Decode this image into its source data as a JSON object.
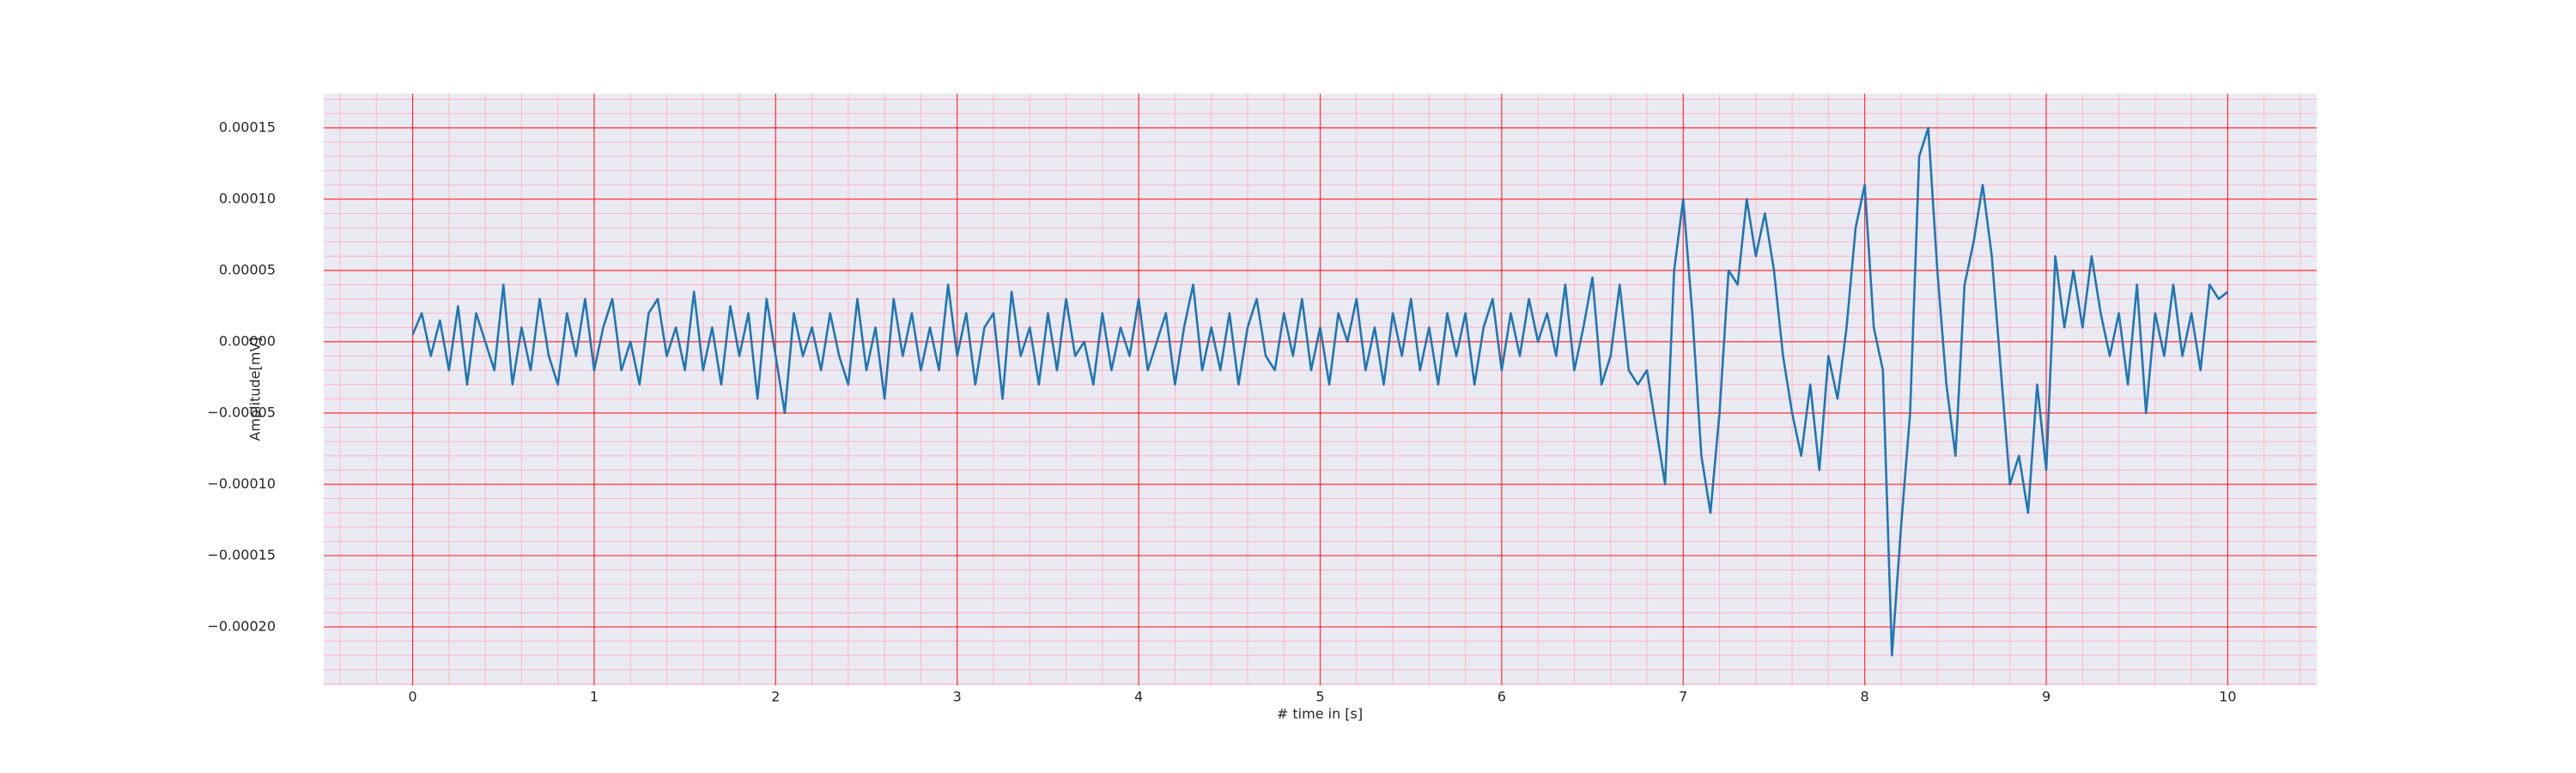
{
  "chart_data": {
    "type": "line",
    "xlabel": "# time in [s]",
    "ylabel": "Amplitude[mV]",
    "color": "#1f77b4",
    "grid": true,
    "grid_color": "#ff0000",
    "minor_grid": true,
    "minor_grid_color": "#ffb6c8",
    "background": "#eaeaf2",
    "xlim": [
      -0.49,
      10.49
    ],
    "ylim": [
      -0.000241,
      0.000174
    ],
    "xticks": [
      0,
      1,
      2,
      3,
      4,
      5,
      6,
      7,
      8,
      9,
      10
    ],
    "yticks": [
      {
        "value": 0.00015,
        "label": "0.00015"
      },
      {
        "value": 0.0001,
        "label": "0.00010"
      },
      {
        "value": 5e-05,
        "label": "0.00005"
      },
      {
        "value": 0,
        "label": "0.00000"
      },
      {
        "value": -5e-05,
        "label": "−0.00005"
      },
      {
        "value": -0.0001,
        "label": "−0.00010"
      },
      {
        "value": -0.00015,
        "label": "−0.00015"
      },
      {
        "value": -0.0002,
        "label": "−0.00020"
      }
    ],
    "x": [
      0,
      0.05,
      0.1,
      0.15,
      0.2,
      0.25,
      0.3,
      0.35,
      0.4,
      0.45,
      0.5,
      0.55,
      0.6,
      0.65,
      0.7,
      0.75,
      0.8,
      0.85,
      0.9,
      0.95,
      1,
      1.05,
      1.1,
      1.15,
      1.2,
      1.25,
      1.3,
      1.35,
      1.4,
      1.45,
      1.5,
      1.55,
      1.6,
      1.65,
      1.7,
      1.75,
      1.8,
      1.85,
      1.9,
      1.95,
      2,
      2.05,
      2.1,
      2.15,
      2.2,
      2.25,
      2.3,
      2.35,
      2.4,
      2.45,
      2.5,
      2.55,
      2.6,
      2.65,
      2.7,
      2.75,
      2.8,
      2.85,
      2.9,
      2.95,
      3,
      3.05,
      3.1,
      3.15,
      3.2,
      3.25,
      3.3,
      3.35,
      3.4,
      3.45,
      3.5,
      3.55,
      3.6,
      3.65,
      3.7,
      3.75,
      3.8,
      3.85,
      3.9,
      3.95,
      4,
      4.05,
      4.1,
      4.15,
      4.2,
      4.25,
      4.3,
      4.35,
      4.4,
      4.45,
      4.5,
      4.55,
      4.6,
      4.65,
      4.7,
      4.75,
      4.8,
      4.85,
      4.9,
      4.95,
      5,
      5.05,
      5.1,
      5.15,
      5.2,
      5.25,
      5.3,
      5.35,
      5.4,
      5.45,
      5.5,
      5.55,
      5.6,
      5.65,
      5.7,
      5.75,
      5.8,
      5.85,
      5.9,
      5.95,
      6,
      6.05,
      6.1,
      6.15,
      6.2,
      6.25,
      6.3,
      6.35,
      6.4,
      6.45,
      6.5,
      6.55,
      6.6,
      6.65,
      6.7,
      6.75,
      6.8,
      6.85,
      6.9,
      6.95,
      7,
      7.05,
      7.1,
      7.15,
      7.2,
      7.25,
      7.3,
      7.35,
      7.4,
      7.45,
      7.5,
      7.55,
      7.6,
      7.65,
      7.7,
      7.75,
      7.8,
      7.85,
      7.9,
      7.95,
      8,
      8.05,
      8.1,
      8.15,
      8.2,
      8.25,
      8.3,
      8.35,
      8.4,
      8.45,
      8.5,
      8.55,
      8.6,
      8.65,
      8.7,
      8.75,
      8.8,
      8.85,
      8.9,
      8.95,
      9,
      9.05,
      9.1,
      9.15,
      9.2,
      9.25,
      9.3,
      9.35,
      9.4,
      9.45,
      9.5,
      9.55,
      9.6,
      9.65,
      9.7,
      9.75,
      9.8,
      9.85,
      9.9,
      9.95,
      10
    ],
    "values": [
      5e-06,
      2e-05,
      -1e-05,
      1.5e-05,
      -2e-05,
      2.5e-05,
      -3e-05,
      2e-05,
      0,
      -2e-05,
      4e-05,
      -3e-05,
      1e-05,
      -2e-05,
      3e-05,
      -1e-05,
      -3e-05,
      2e-05,
      -1e-05,
      3e-05,
      -2e-05,
      1e-05,
      3e-05,
      -2e-05,
      0,
      -3e-05,
      2e-05,
      3e-05,
      -1e-05,
      1e-05,
      -2e-05,
      3.5e-05,
      -2e-05,
      1e-05,
      -3e-05,
      2.5e-05,
      -1e-05,
      2e-05,
      -4e-05,
      3e-05,
      -1e-05,
      -5e-05,
      2e-05,
      -1e-05,
      1e-05,
      -2e-05,
      2e-05,
      -1e-05,
      -3e-05,
      3e-05,
      -2e-05,
      1e-05,
      -4e-05,
      3e-05,
      -1e-05,
      2e-05,
      -2e-05,
      1e-05,
      -2e-05,
      4e-05,
      -1e-05,
      2e-05,
      -3e-05,
      1e-05,
      2e-05,
      -4e-05,
      3.5e-05,
      -1e-05,
      1e-05,
      -3e-05,
      2e-05,
      -2e-05,
      3e-05,
      -1e-05,
      0,
      -3e-05,
      2e-05,
      -2e-05,
      1e-05,
      -1e-05,
      3e-05,
      -2e-05,
      0,
      2e-05,
      -3e-05,
      1e-05,
      4e-05,
      -2e-05,
      1e-05,
      -2e-05,
      2e-05,
      -3e-05,
      1e-05,
      3e-05,
      -1e-05,
      -2e-05,
      2e-05,
      -1e-05,
      3e-05,
      -2e-05,
      1e-05,
      -3e-05,
      2e-05,
      0,
      3e-05,
      -2e-05,
      1e-05,
      -3e-05,
      2e-05,
      -1e-05,
      3e-05,
      -2e-05,
      1e-05,
      -3e-05,
      2e-05,
      -1e-05,
      2e-05,
      -3e-05,
      1e-05,
      3e-05,
      -2e-05,
      2e-05,
      -1e-05,
      3e-05,
      0,
      2e-05,
      -1e-05,
      4e-05,
      -2e-05,
      1e-05,
      4.5e-05,
      -3e-05,
      -1e-05,
      4e-05,
      -2e-05,
      -3e-05,
      -2e-05,
      -6e-05,
      -0.0001,
      5e-05,
      0.0001,
      2e-05,
      -8e-05,
      -0.00012,
      -5e-05,
      5e-05,
      4e-05,
      0.0001,
      6e-05,
      9e-05,
      5e-05,
      -1e-05,
      -5e-05,
      -8e-05,
      -3e-05,
      -9e-05,
      -1e-05,
      -4e-05,
      1e-05,
      8e-05,
      0.00011,
      1e-05,
      -2e-05,
      -0.00022,
      -0.00013,
      -5e-05,
      0.00013,
      0.00015,
      5e-05,
      -3e-05,
      -8e-05,
      4e-05,
      7e-05,
      0.00011,
      6e-05,
      -2e-05,
      -0.0001,
      -8e-05,
      -0.00012,
      -3e-05,
      -9e-05,
      6e-05,
      1e-05,
      5e-05,
      1e-05,
      6e-05,
      2e-05,
      -1e-05,
      2e-05,
      -3e-05,
      4e-05,
      -5e-05,
      2e-05,
      -1e-05,
      4e-05,
      -1e-05,
      2e-05,
      -2e-05,
      4e-05,
      3e-05,
      3.5e-05
    ]
  }
}
